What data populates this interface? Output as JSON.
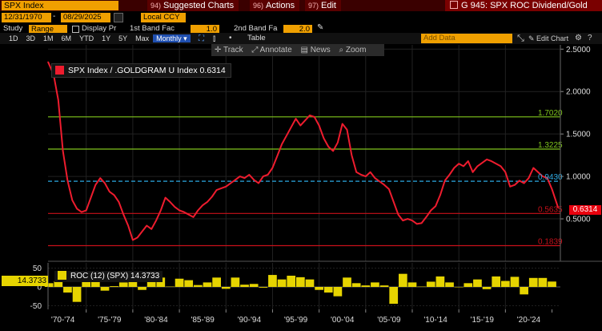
{
  "header": {
    "ticker": "SPX Index",
    "menus": [
      {
        "tag": "94)",
        "label": "Suggested Charts"
      },
      {
        "tag": "96)",
        "label": "Actions"
      },
      {
        "tag": "97)",
        "label": "Edit"
      }
    ],
    "chart_title": "G 945: SPX ROC Dividend/Gold"
  },
  "daterow": {
    "start_date": "12/31/1970",
    "end_date": "08/29/2025",
    "currency": "Local CCY"
  },
  "studyrow": {
    "study_label": "Study",
    "study_value": "Range Avera",
    "display_label": "Display Pr",
    "band1_label": "1st Band Fac",
    "band1_value": "1.0",
    "band2_label": "2nd Band Fa",
    "band2_value": "2.0"
  },
  "tabs": {
    "ranges": [
      "1D",
      "3D",
      "1M",
      "6M",
      "YTD",
      "1Y",
      "5Y",
      "Max"
    ],
    "frequency": "Monthly",
    "table_label": "Table",
    "add_data_placeholder": "Add Data",
    "edit_chart_label": "Edit Chart"
  },
  "toolbar": {
    "track": "Track",
    "annotate": "Annotate",
    "news": "News",
    "zoom": "Zoom"
  },
  "colors": {
    "main_line": "#ee1c2e",
    "green_band": "#7fc41c",
    "cyan_band": "#2aa7e0",
    "red_band": "#c8101a",
    "roc_fill": "#e6d400"
  },
  "chart_data": [
    {
      "type": "line",
      "legend": "SPX Index / .GOLDGRAM U Index 0.6314",
      "last_value": "0.6314",
      "x_tick_labels": [
        "'70-'74",
        "'75-'79",
        "'80-'84",
        "'85-'89",
        "'90-'94",
        "'95-'99",
        "'00-'04",
        "'05-'09",
        "'10-'14",
        "'15-'19",
        "'20-'24"
      ],
      "ylim": [
        0.0,
        2.55
      ],
      "y_ticks": [
        0.5,
        1.0,
        1.5,
        2.0,
        2.5
      ],
      "y_tick_labels": [
        "0.5000",
        "1.0000",
        "1.5000",
        "2.0000",
        "2.5000"
      ],
      "bands": [
        {
          "value": 1.702,
          "label": "1.7020",
          "color": "green"
        },
        {
          "value": 1.3225,
          "label": "1.3225",
          "color": "green"
        },
        {
          "value": 0.943,
          "label": "0.9430",
          "color": "cyan",
          "dashed": true
        },
        {
          "value": 0.5635,
          "label": "0.5635",
          "color": "red"
        },
        {
          "value": 0.1839,
          "label": "0.1839",
          "color": "red"
        }
      ],
      "x": [
        1970.9,
        1971.5,
        1972.0,
        1972.5,
        1973.0,
        1973.5,
        1974.0,
        1974.5,
        1975.0,
        1975.5,
        1976.0,
        1976.5,
        1977.0,
        1977.5,
        1978.0,
        1978.5,
        1979.0,
        1979.5,
        1980.0,
        1980.5,
        1981.0,
        1981.5,
        1982.0,
        1982.5,
        1983.0,
        1983.5,
        1984.0,
        1984.5,
        1985.0,
        1985.5,
        1986.0,
        1986.5,
        1987.0,
        1987.5,
        1988.0,
        1988.5,
        1989.0,
        1989.5,
        1990.0,
        1990.5,
        1991.0,
        1991.5,
        1992.0,
        1992.5,
        1993.0,
        1993.5,
        1994.0,
        1994.5,
        1995.0,
        1995.5,
        1996.0,
        1996.5,
        1997.0,
        1997.5,
        1998.0,
        1998.5,
        1999.0,
        1999.5,
        2000.0,
        2000.5,
        2001.0,
        2001.5,
        2002.0,
        2002.5,
        2003.0,
        2003.5,
        2004.0,
        2004.5,
        2005.0,
        2005.5,
        2006.0,
        2006.5,
        2007.0,
        2007.5,
        2008.0,
        2008.5,
        2009.0,
        2009.5,
        2010.0,
        2010.5,
        2011.0,
        2011.5,
        2012.0,
        2012.5,
        2013.0,
        2013.5,
        2014.0,
        2014.5,
        2015.0,
        2015.5,
        2016.0,
        2016.5,
        2017.0,
        2017.5,
        2018.0,
        2018.5,
        2019.0,
        2019.5,
        2020.0,
        2020.5,
        2021.0,
        2021.5,
        2022.0,
        2022.5,
        2023.0,
        2023.5,
        2024.0,
        2024.5,
        2025.0,
        2025.66
      ],
      "y": [
        2.35,
        2.2,
        1.9,
        1.3,
        0.95,
        0.72,
        0.62,
        0.58,
        0.6,
        0.75,
        0.9,
        0.98,
        0.92,
        0.82,
        0.78,
        0.7,
        0.55,
        0.42,
        0.25,
        0.28,
        0.35,
        0.42,
        0.38,
        0.48,
        0.6,
        0.75,
        0.7,
        0.64,
        0.6,
        0.58,
        0.55,
        0.52,
        0.6,
        0.66,
        0.7,
        0.76,
        0.84,
        0.86,
        0.88,
        0.92,
        0.96,
        1.0,
        0.98,
        1.02,
        0.96,
        0.92,
        1.0,
        1.02,
        1.1,
        1.24,
        1.38,
        1.48,
        1.58,
        1.68,
        1.6,
        1.66,
        1.72,
        1.7,
        1.6,
        1.45,
        1.35,
        1.3,
        1.4,
        1.62,
        1.55,
        1.25,
        1.05,
        1.02,
        1.0,
        1.05,
        0.98,
        0.94,
        0.9,
        0.85,
        0.7,
        0.55,
        0.48,
        0.5,
        0.48,
        0.44,
        0.45,
        0.52,
        0.6,
        0.65,
        0.78,
        0.95,
        1.02,
        1.1,
        1.15,
        1.12,
        1.18,
        1.05,
        1.12,
        1.16,
        1.2,
        1.18,
        1.15,
        1.12,
        1.05,
        0.88,
        0.9,
        0.95,
        0.92,
        0.98,
        1.1,
        1.05,
        1.0,
        0.98,
        0.85,
        0.6314
      ]
    },
    {
      "type": "area",
      "legend": "ROC (12) (SPX) 14.3733",
      "last_value": "14.3733",
      "ylim": [
        -60,
        60
      ],
      "y_ticks": [
        50,
        0,
        -50
      ],
      "y_tick_labels": [
        "50",
        "0",
        "-50"
      ],
      "x": [
        1971,
        1972,
        1973,
        1974,
        1975,
        1976,
        1977,
        1978,
        1979,
        1980,
        1981,
        1982,
        1983,
        1984,
        1985,
        1986,
        1987,
        1988,
        1989,
        1990,
        1991,
        1992,
        1993,
        1994,
        1995,
        1996,
        1997,
        1998,
        1999,
        2000,
        2001,
        2002,
        2003,
        2004,
        2005,
        2006,
        2007,
        2008,
        2009,
        2010,
        2011,
        2012,
        2013,
        2014,
        2015,
        2016,
        2017,
        2018,
        2019,
        2020,
        2021,
        2022,
        2023,
        2024,
        2025
      ],
      "y": [
        10,
        15,
        -15,
        -40,
        30,
        18,
        -10,
        2,
        12,
        20,
        -8,
        15,
        25,
        1,
        22,
        18,
        5,
        12,
        25,
        -5,
        25,
        6,
        8,
        -2,
        32,
        20,
        30,
        26,
        20,
        -8,
        -15,
        -25,
        25,
        10,
        4,
        12,
        4,
        -45,
        35,
        12,
        1,
        14,
        28,
        12,
        -1,
        10,
        20,
        -6,
        28,
        16,
        27,
        -20,
        24,
        24,
        14.37
      ]
    }
  ]
}
